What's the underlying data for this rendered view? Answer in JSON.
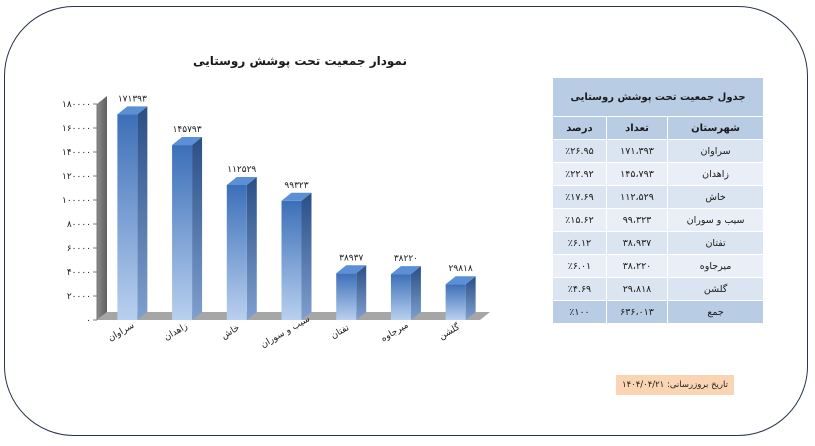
{
  "chart_data": {
    "type": "bar",
    "title": "نمودار جمعیت تحت پوشش روستایی",
    "categories": [
      "سراوان",
      "زاهدان",
      "خاش",
      "سیب و سوران",
      "تفتان",
      "میرجاوه",
      "گلشن"
    ],
    "values": [
      171393,
      145793,
      112529,
      99323,
      38937,
      38220,
      29818
    ],
    "value_labels": [
      "۱۷۱۳۹۳",
      "۱۴۵۷۹۳",
      "۱۱۲۵۲۹",
      "۹۹۳۲۳",
      "۳۸۹۳۷",
      "۳۸۲۲۰",
      "۲۹۸۱۸"
    ],
    "yticks": [
      0,
      20000,
      40000,
      60000,
      80000,
      100000,
      120000,
      140000,
      160000,
      180000
    ],
    "ytick_labels": [
      "۰",
      "۲۰۰۰۰",
      "۴۰۰۰۰",
      "۶۰۰۰۰",
      "۸۰۰۰۰",
      "۱۰۰۰۰۰",
      "۱۲۰۰۰۰",
      "۱۴۰۰۰۰",
      "۱۶۰۰۰۰",
      "۱۸۰۰۰۰"
    ],
    "ylim": [
      0,
      180000
    ],
    "xlabel": "",
    "ylabel": "",
    "grid": false,
    "bar_color": "#4f81bd",
    "style": "3d"
  },
  "table": {
    "title": "جدول جمعیت تحت پوشش روستایی",
    "headers": [
      "شهرستان",
      "تعداد",
      "درصد"
    ],
    "rows": [
      [
        "سراوان",
        "۱۷۱،۳۹۳",
        "٪۲۶.۹۵"
      ],
      [
        "زاهدان",
        "۱۴۵،۷۹۳",
        "٪۲۲.۹۲"
      ],
      [
        "خاش",
        "۱۱۲،۵۲۹",
        "٪۱۷.۶۹"
      ],
      [
        "سیب و سوران",
        "۹۹،۳۲۳",
        "٪۱۵.۶۲"
      ],
      [
        "تفتان",
        "۳۸،۹۳۷",
        "٪۶.۱۲"
      ],
      [
        "میرجاوه",
        "۳۸،۲۲۰",
        "٪۶.۰۱"
      ],
      [
        "گلشن",
        "۲۹،۸۱۸",
        "٪۴.۶۹"
      ]
    ],
    "total": [
      "جمع",
      "۶۳۶،۰۱۳",
      "٪۱۰۰"
    ],
    "header_color": "#b8cce4",
    "row_color_a": "#dbe5f1",
    "row_color_b": "#e9eef7"
  },
  "update_date": "تاریخ بروزرسانی: ۱۴۰۴/۰۴/۲۱",
  "colors": {
    "border": "#27344a",
    "date_bg": "#fbd4b4",
    "wall": "#808080",
    "floor": "#a6a6a6"
  }
}
